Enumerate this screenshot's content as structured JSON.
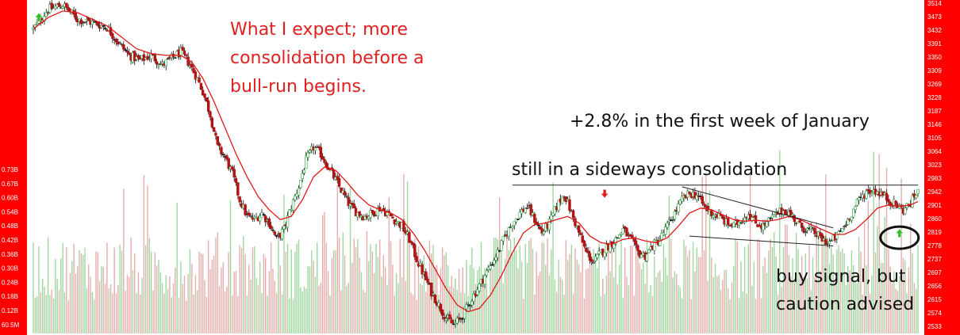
{
  "chart_data": {
    "type": "candlestick",
    "colors": {
      "bull": "#22a33a",
      "bear": "#b31212",
      "doji": "#111111",
      "ma": "#e01818",
      "frame": "#ff0000",
      "trendline": "#222222",
      "annotation_red": "#e02020",
      "annotation_black": "#111111",
      "volume_bull": "#8fd08f",
      "volume_bear": "#e3a0a0",
      "arrow_green": "#2ebd2e",
      "arrow_red": "#e02020"
    },
    "price_axis": {
      "labels": [
        "3514",
        "3473",
        "3432",
        "3391",
        "3350",
        "3309",
        "3269",
        "3228",
        "3187",
        "3146",
        "3105",
        "3064",
        "3023",
        "2983",
        "2942",
        "2901",
        "2860",
        "2819",
        "2778",
        "2737",
        "2697",
        "2656",
        "2615",
        "2574",
        "2533"
      ],
      "range": [
        2533,
        3514
      ],
      "position": "right"
    },
    "volume_axis": {
      "labels": [
        "0.73B",
        "0.67B",
        "0.60B",
        "0.54B",
        "0.48B",
        "0.42B",
        "0.36B",
        "0.30B",
        "0.24B",
        "0.18B",
        "0.12B",
        "60.5M"
      ],
      "position": "left"
    },
    "price_path": [
      [
        0,
        3440
      ],
      [
        8,
        3500
      ],
      [
        16,
        3514
      ],
      [
        24,
        3470
      ],
      [
        32,
        3460
      ],
      [
        40,
        3445
      ],
      [
        46,
        3400
      ],
      [
        52,
        3360
      ],
      [
        58,
        3345
      ],
      [
        64,
        3360
      ],
      [
        70,
        3330
      ],
      [
        76,
        3355
      ],
      [
        80,
        3370
      ],
      [
        84,
        3340
      ],
      [
        88,
        3300
      ],
      [
        92,
        3250
      ],
      [
        96,
        3180
      ],
      [
        100,
        3080
      ],
      [
        104,
        3050
      ],
      [
        108,
        3000
      ],
      [
        112,
        2920
      ],
      [
        116,
        2870
      ],
      [
        120,
        2860
      ],
      [
        124,
        2880
      ],
      [
        128,
        2850
      ],
      [
        132,
        2800
      ],
      [
        136,
        2830
      ],
      [
        140,
        2900
      ],
      [
        144,
        2960
      ],
      [
        148,
        3040
      ],
      [
        152,
        3080
      ],
      [
        156,
        3060
      ],
      [
        160,
        3020
      ],
      [
        164,
        2980
      ],
      [
        168,
        2940
      ],
      [
        172,
        2900
      ],
      [
        176,
        2880
      ],
      [
        180,
        2870
      ],
      [
        184,
        2880
      ],
      [
        188,
        2895
      ],
      [
        192,
        2880
      ],
      [
        196,
        2860
      ],
      [
        200,
        2840
      ],
      [
        204,
        2800
      ],
      [
        208,
        2740
      ],
      [
        212,
        2690
      ],
      [
        216,
        2640
      ],
      [
        220,
        2600
      ],
      [
        224,
        2560
      ],
      [
        228,
        2540
      ],
      [
        232,
        2560
      ],
      [
        236,
        2600
      ],
      [
        240,
        2640
      ],
      [
        244,
        2680
      ],
      [
        248,
        2720
      ],
      [
        252,
        2760
      ],
      [
        256,
        2810
      ],
      [
        260,
        2850
      ],
      [
        264,
        2880
      ],
      [
        268,
        2900
      ],
      [
        272,
        2860
      ],
      [
        276,
        2820
      ],
      [
        280,
        2850
      ],
      [
        284,
        2900
      ],
      [
        288,
        2940
      ],
      [
        292,
        2880
      ],
      [
        296,
        2820
      ],
      [
        300,
        2760
      ],
      [
        304,
        2730
      ],
      [
        308,
        2760
      ],
      [
        312,
        2780
      ],
      [
        316,
        2800
      ],
      [
        320,
        2830
      ],
      [
        324,
        2800
      ],
      [
        328,
        2760
      ],
      [
        332,
        2750
      ],
      [
        336,
        2780
      ],
      [
        340,
        2800
      ],
      [
        344,
        2840
      ],
      [
        348,
        2880
      ],
      [
        352,
        2920
      ],
      [
        356,
        2940
      ],
      [
        360,
        2935
      ],
      [
        364,
        2900
      ],
      [
        368,
        2880
      ],
      [
        372,
        2870
      ],
      [
        376,
        2850
      ],
      [
        380,
        2840
      ],
      [
        384,
        2860
      ],
      [
        388,
        2880
      ],
      [
        392,
        2850
      ],
      [
        396,
        2840
      ],
      [
        400,
        2860
      ],
      [
        404,
        2880
      ],
      [
        408,
        2890
      ],
      [
        412,
        2870
      ],
      [
        416,
        2840
      ],
      [
        420,
        2830
      ],
      [
        424,
        2820
      ],
      [
        428,
        2800
      ],
      [
        432,
        2790
      ],
      [
        436,
        2810
      ],
      [
        440,
        2840
      ],
      [
        444,
        2880
      ],
      [
        448,
        2920
      ],
      [
        452,
        2945
      ],
      [
        456,
        2950
      ],
      [
        460,
        2940
      ],
      [
        464,
        2920
      ],
      [
        468,
        2905
      ],
      [
        472,
        2890
      ],
      [
        476,
        2910
      ],
      [
        480,
        2950
      ]
    ],
    "moving_average": {
      "period_label": "",
      "path": [
        [
          0,
          3440
        ],
        [
          8,
          3475
        ],
        [
          16,
          3495
        ],
        [
          24,
          3490
        ],
        [
          32,
          3470
        ],
        [
          40,
          3450
        ],
        [
          48,
          3415
        ],
        [
          56,
          3380
        ],
        [
          64,
          3365
        ],
        [
          72,
          3360
        ],
        [
          80,
          3360
        ],
        [
          86,
          3340
        ],
        [
          92,
          3290
        ],
        [
          98,
          3220
        ],
        [
          104,
          3140
        ],
        [
          110,
          3060
        ],
        [
          116,
          2990
        ],
        [
          122,
          2930
        ],
        [
          128,
          2890
        ],
        [
          134,
          2860
        ],
        [
          140,
          2870
        ],
        [
          146,
          2920
        ],
        [
          152,
          2990
        ],
        [
          158,
          3020
        ],
        [
          164,
          3010
        ],
        [
          170,
          2975
        ],
        [
          176,
          2935
        ],
        [
          182,
          2905
        ],
        [
          188,
          2890
        ],
        [
          194,
          2880
        ],
        [
          200,
          2860
        ],
        [
          206,
          2820
        ],
        [
          212,
          2770
        ],
        [
          218,
          2710
        ],
        [
          224,
          2650
        ],
        [
          230,
          2600
        ],
        [
          236,
          2580
        ],
        [
          242,
          2590
        ],
        [
          248,
          2630
        ],
        [
          254,
          2690
        ],
        [
          260,
          2760
        ],
        [
          266,
          2820
        ],
        [
          272,
          2845
        ],
        [
          278,
          2850
        ],
        [
          284,
          2860
        ],
        [
          290,
          2870
        ],
        [
          296,
          2850
        ],
        [
          302,
          2810
        ],
        [
          308,
          2790
        ],
        [
          314,
          2785
        ],
        [
          320,
          2800
        ],
        [
          326,
          2805
        ],
        [
          332,
          2795
        ],
        [
          338,
          2790
        ],
        [
          344,
          2805
        ],
        [
          350,
          2840
        ],
        [
          356,
          2880
        ],
        [
          362,
          2895
        ],
        [
          368,
          2890
        ],
        [
          374,
          2875
        ],
        [
          380,
          2860
        ],
        [
          386,
          2855
        ],
        [
          392,
          2858
        ],
        [
          398,
          2855
        ],
        [
          404,
          2860
        ],
        [
          410,
          2870
        ],
        [
          416,
          2860
        ],
        [
          422,
          2845
        ],
        [
          428,
          2830
        ],
        [
          434,
          2815
        ],
        [
          440,
          2815
        ],
        [
          446,
          2830
        ],
        [
          452,
          2860
        ],
        [
          458,
          2895
        ],
        [
          464,
          2905
        ],
        [
          470,
          2900
        ],
        [
          476,
          2905
        ],
        [
          480,
          2915
        ]
      ]
    },
    "trendlines": [
      {
        "name": "resistance",
        "from": [
          260,
          2965
        ],
        "to": [
          480,
          2965
        ]
      },
      {
        "name": "wedge-upper",
        "from": [
          352,
          2960
        ],
        "to": [
          434,
          2835
        ]
      },
      {
        "name": "wedge-lower",
        "from": [
          356,
          2810
        ],
        "to": [
          434,
          2780
        ]
      }
    ],
    "markers": [
      {
        "name": "buy-arrow-early",
        "type": "up",
        "x": 3,
        "price": 3475
      },
      {
        "name": "sell-arrow",
        "type": "down",
        "x": 310,
        "price": 2940
      },
      {
        "name": "buy-arrow-recent",
        "type": "up",
        "x": 470,
        "price": 2818
      }
    ],
    "highlight_ellipse": {
      "x": 470,
      "price": 2805
    },
    "annotations": [
      {
        "text": "What I expect; more",
        "color": "annotation_red"
      },
      {
        "text": "consolidation before a",
        "color": "annotation_red"
      },
      {
        "text": "bull-run begins.",
        "color": "annotation_red"
      },
      {
        "text": "+2.8% in the first week of January",
        "color": "annotation_black"
      },
      {
        "text": "still in a sideways consolidation",
        "color": "annotation_black"
      },
      {
        "text": "buy signal, but",
        "color": "annotation_black"
      },
      {
        "text": "caution advised",
        "color": "annotation_black"
      }
    ],
    "grid": false,
    "legend": "none"
  }
}
